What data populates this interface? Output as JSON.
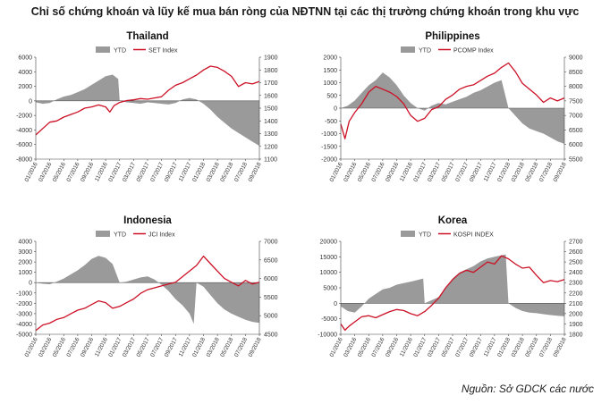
{
  "main_title": "Chỉ số chứng khoán và lũy kế mua bán ròng của NĐTNN tại các thị trường chứng khoán trong khu vực",
  "source": "Nguồn: Sở GDCK các nước",
  "colors": {
    "bar": "#9a9a9a",
    "line": "#cc1126"
  },
  "chart_data": [
    {
      "type": "area+line",
      "title": "Thailand",
      "legend": [
        "YTD",
        "SET Index"
      ],
      "left_ticks": [
        "6000",
        "4000",
        "2000",
        "0",
        "-2000",
        "-4000",
        "-6000",
        "-8000"
      ],
      "left_range": [
        -8000,
        6000
      ],
      "right_ticks": [
        "1900",
        "1800",
        "1700",
        "1600",
        "1500",
        "1400",
        "1300",
        "1200",
        "1100"
      ],
      "right_range": [
        1100,
        1900
      ],
      "x_labels": [
        "01/2016",
        "03/2016",
        "05/2016",
        "07/2016",
        "09/2016",
        "11/2016",
        "01/2017",
        "03/2017",
        "05/2017",
        "07/2017",
        "09/2017",
        "11/2017",
        "01/2018",
        "03/2018",
        "05/2018",
        "07/2018",
        "09/2018"
      ],
      "ytd_series": [
        [
          0,
          -200
        ],
        [
          0.5,
          -400
        ],
        [
          1,
          -300
        ],
        [
          1.5,
          200
        ],
        [
          2,
          600
        ],
        [
          2.5,
          800
        ],
        [
          3,
          1200
        ],
        [
          3.5,
          1600
        ],
        [
          4,
          2200
        ],
        [
          4.5,
          2800
        ],
        [
          5,
          3400
        ],
        [
          5.5,
          3600
        ],
        [
          5.9,
          3000
        ],
        [
          6,
          0
        ],
        [
          6.5,
          -200
        ],
        [
          7,
          -300
        ],
        [
          7.5,
          -400
        ],
        [
          8,
          -200
        ],
        [
          8.5,
          -300
        ],
        [
          9,
          -400
        ],
        [
          9.5,
          -500
        ],
        [
          10,
          -300
        ],
        [
          10.5,
          200
        ],
        [
          11,
          400
        ],
        [
          11.5,
          200
        ],
        [
          12,
          -400
        ],
        [
          12.5,
          -1200
        ],
        [
          13,
          -2200
        ],
        [
          13.5,
          -3000
        ],
        [
          14,
          -3800
        ],
        [
          14.5,
          -4400
        ],
        [
          15,
          -5000
        ],
        [
          15.5,
          -5600
        ],
        [
          16,
          -6200
        ]
      ],
      "index_series": [
        [
          0,
          1290
        ],
        [
          0.5,
          1340
        ],
        [
          1,
          1390
        ],
        [
          1.5,
          1400
        ],
        [
          2,
          1430
        ],
        [
          2.5,
          1450
        ],
        [
          3,
          1470
        ],
        [
          3.5,
          1500
        ],
        [
          4,
          1510
        ],
        [
          4.5,
          1525
        ],
        [
          5,
          1510
        ],
        [
          5.3,
          1470
        ],
        [
          5.6,
          1520
        ],
        [
          6,
          1545
        ],
        [
          6.5,
          1560
        ],
        [
          7,
          1565
        ],
        [
          7.5,
          1575
        ],
        [
          8,
          1570
        ],
        [
          8.5,
          1580
        ],
        [
          9,
          1590
        ],
        [
          9.5,
          1640
        ],
        [
          10,
          1680
        ],
        [
          10.5,
          1700
        ],
        [
          11,
          1730
        ],
        [
          11.5,
          1760
        ],
        [
          12,
          1800
        ],
        [
          12.5,
          1830
        ],
        [
          13,
          1820
        ],
        [
          13.5,
          1790
        ],
        [
          14,
          1750
        ],
        [
          14.5,
          1670
        ],
        [
          15,
          1700
        ],
        [
          15.5,
          1690
        ],
        [
          16,
          1710
        ]
      ]
    },
    {
      "type": "area+line",
      "title": "Philippines",
      "legend": [
        "YTD",
        "PCOMP Index"
      ],
      "left_ticks": [
        "2000",
        "1500",
        "1000",
        "500",
        "0",
        "-500",
        "-1000",
        "-1500",
        "-2000"
      ],
      "left_range": [
        -2000,
        2000
      ],
      "right_ticks": [
        "9000",
        "8500",
        "8000",
        "7500",
        "7000",
        "6500",
        "6000",
        "5500"
      ],
      "right_range": [
        5500,
        9000
      ],
      "x_labels": [
        "01/2016",
        "03/2016",
        "05/2016",
        "07/2016",
        "09/2016",
        "11/2016",
        "01/2017",
        "03/2017",
        "05/2017",
        "07/2017",
        "09/2017",
        "11/2017",
        "01/2018",
        "03/2018",
        "05/2018",
        "07/2018",
        "09/2018"
      ],
      "ytd_series": [
        [
          0,
          0
        ],
        [
          0.5,
          100
        ],
        [
          1,
          300
        ],
        [
          1.5,
          600
        ],
        [
          2,
          900
        ],
        [
          2.5,
          1100
        ],
        [
          3,
          1400
        ],
        [
          3.5,
          1200
        ],
        [
          4,
          900
        ],
        [
          4.5,
          500
        ],
        [
          5,
          200
        ],
        [
          5.5,
          0
        ],
        [
          6,
          -100
        ],
        [
          6.5,
          100
        ],
        [
          7,
          200
        ],
        [
          7.5,
          150
        ],
        [
          8,
          250
        ],
        [
          8.5,
          350
        ],
        [
          9,
          450
        ],
        [
          9.5,
          600
        ],
        [
          10,
          700
        ],
        [
          10.5,
          850
        ],
        [
          11,
          1000
        ],
        [
          11.5,
          1100
        ],
        [
          12,
          0
        ],
        [
          12.5,
          -300
        ],
        [
          13,
          -600
        ],
        [
          13.5,
          -800
        ],
        [
          14,
          -900
        ],
        [
          14.5,
          -1000
        ],
        [
          15,
          -1150
        ],
        [
          15.5,
          -1300
        ],
        [
          16,
          -1400
        ]
      ],
      "index_series": [
        [
          0,
          6700
        ],
        [
          0.3,
          6200
        ],
        [
          0.6,
          6800
        ],
        [
          1,
          7100
        ],
        [
          1.5,
          7400
        ],
        [
          2,
          7800
        ],
        [
          2.5,
          8000
        ],
        [
          3,
          7900
        ],
        [
          3.5,
          7800
        ],
        [
          4,
          7650
        ],
        [
          4.5,
          7400
        ],
        [
          5,
          7000
        ],
        [
          5.5,
          6800
        ],
        [
          6,
          6900
        ],
        [
          6.5,
          7200
        ],
        [
          7,
          7300
        ],
        [
          7.5,
          7550
        ],
        [
          8,
          7700
        ],
        [
          8.5,
          7900
        ],
        [
          9,
          8000
        ],
        [
          9.5,
          8050
        ],
        [
          10,
          8200
        ],
        [
          10.5,
          8350
        ],
        [
          11,
          8450
        ],
        [
          11.5,
          8650
        ],
        [
          12,
          8800
        ],
        [
          12.5,
          8500
        ],
        [
          13,
          8100
        ],
        [
          13.5,
          7900
        ],
        [
          14,
          7700
        ],
        [
          14.5,
          7450
        ],
        [
          15,
          7600
        ],
        [
          15.5,
          7500
        ],
        [
          16,
          7600
        ]
      ]
    },
    {
      "type": "area+line",
      "title": "Indonesia",
      "legend": [
        "YTD",
        "JCI Index"
      ],
      "left_ticks": [
        "4000",
        "3000",
        "2000",
        "1000",
        "0",
        "-1000",
        "-2000",
        "-3000",
        "-4000",
        "-5000"
      ],
      "left_range": [
        -5000,
        4000
      ],
      "right_ticks": [
        "7000",
        "6500",
        "6000",
        "5500",
        "5000",
        "4500"
      ],
      "right_range": [
        4500,
        7000
      ],
      "x_labels": [
        "01/2016",
        "03/2016",
        "05/2016",
        "07/2016",
        "09/2016",
        "11/2016",
        "01/2017",
        "03/2017",
        "05/2017",
        "07/2017",
        "09/2017",
        "11/2017",
        "01/2018",
        "03/2018",
        "05/2018",
        "07/2018",
        "09/2018"
      ],
      "ytd_series": [
        [
          0,
          0
        ],
        [
          0.5,
          -100
        ],
        [
          1,
          -150
        ],
        [
          1.5,
          100
        ],
        [
          2,
          400
        ],
        [
          2.5,
          800
        ],
        [
          3,
          1200
        ],
        [
          3.5,
          1700
        ],
        [
          4,
          2300
        ],
        [
          4.5,
          2600
        ],
        [
          5,
          2400
        ],
        [
          5.5,
          1800
        ],
        [
          6,
          0
        ],
        [
          6.5,
          100
        ],
        [
          7,
          300
        ],
        [
          7.5,
          500
        ],
        [
          8,
          600
        ],
        [
          8.5,
          300
        ],
        [
          9,
          -200
        ],
        [
          9.5,
          -800
        ],
        [
          10,
          -1600
        ],
        [
          10.5,
          -2200
        ],
        [
          11,
          -3000
        ],
        [
          11.3,
          -4000
        ],
        [
          11.5,
          0
        ],
        [
          12,
          -400
        ],
        [
          12.5,
          -1200
        ],
        [
          13,
          -2000
        ],
        [
          13.5,
          -2600
        ],
        [
          14,
          -3000
        ],
        [
          14.5,
          -3300
        ],
        [
          15,
          -3600
        ],
        [
          15.5,
          -3800
        ],
        [
          16,
          -3900
        ]
      ],
      "index_series": [
        [
          0,
          4600
        ],
        [
          0.5,
          4750
        ],
        [
          1,
          4800
        ],
        [
          1.5,
          4900
        ],
        [
          2,
          4950
        ],
        [
          2.5,
          5050
        ],
        [
          3,
          5150
        ],
        [
          3.5,
          5200
        ],
        [
          4,
          5300
        ],
        [
          4.5,
          5400
        ],
        [
          5,
          5350
        ],
        [
          5.5,
          5200
        ],
        [
          6,
          5250
        ],
        [
          6.5,
          5350
        ],
        [
          7,
          5450
        ],
        [
          7.5,
          5600
        ],
        [
          8,
          5700
        ],
        [
          8.5,
          5750
        ],
        [
          9,
          5800
        ],
        [
          9.5,
          5850
        ],
        [
          10,
          5900
        ],
        [
          10.5,
          6050
        ],
        [
          11,
          6200
        ],
        [
          11.5,
          6350
        ],
        [
          12,
          6600
        ],
        [
          12.5,
          6400
        ],
        [
          13,
          6200
        ],
        [
          13.5,
          6000
        ],
        [
          14,
          5900
        ],
        [
          14.5,
          5800
        ],
        [
          15,
          5950
        ],
        [
          15.5,
          5850
        ],
        [
          16,
          5900
        ]
      ]
    },
    {
      "type": "area+line",
      "title": "Korea",
      "legend": [
        "YTD",
        "KOSPI INDEX"
      ],
      "left_ticks": [
        "20000",
        "15000",
        "10000",
        "5000",
        "0",
        "-5000",
        "-10000"
      ],
      "left_range": [
        -10000,
        20000
      ],
      "right_ticks": [
        "2700",
        "2600",
        "2500",
        "2400",
        "2300",
        "2200",
        "2100",
        "2000",
        "1900",
        "1800"
      ],
      "right_range": [
        1800,
        2700
      ],
      "x_labels": [
        "01/2016",
        "03/2016",
        "05/2016",
        "07/2016",
        "09/2016",
        "11/2016",
        "01/2017",
        "03/2017",
        "05/2017",
        "07/2017",
        "09/2017",
        "11/2017",
        "01/2018",
        "03/2018",
        "05/2018",
        "07/2018",
        "09/2018"
      ],
      "ytd_series": [
        [
          0,
          -1000
        ],
        [
          0.5,
          -2500
        ],
        [
          1,
          -3000
        ],
        [
          1.5,
          -1000
        ],
        [
          2,
          1500
        ],
        [
          2.5,
          3000
        ],
        [
          3,
          4500
        ],
        [
          3.5,
          5000
        ],
        [
          4,
          6000
        ],
        [
          4.5,
          6500
        ],
        [
          5,
          7000
        ],
        [
          5.5,
          7500
        ],
        [
          5.9,
          8000
        ],
        [
          6,
          0
        ],
        [
          6.5,
          1000
        ],
        [
          7,
          2000
        ],
        [
          7.5,
          5000
        ],
        [
          8,
          8000
        ],
        [
          8.5,
          10000
        ],
        [
          9,
          11000
        ],
        [
          9.5,
          12000
        ],
        [
          10,
          13500
        ],
        [
          10.5,
          14500
        ],
        [
          11,
          15000
        ],
        [
          11.5,
          15500
        ],
        [
          11.8,
          15800
        ],
        [
          12,
          0
        ],
        [
          12.5,
          -1500
        ],
        [
          13,
          -2500
        ],
        [
          13.5,
          -3000
        ],
        [
          14,
          -3200
        ],
        [
          14.5,
          -3500
        ],
        [
          15,
          -3800
        ],
        [
          15.5,
          -4000
        ],
        [
          16,
          -4200
        ]
      ],
      "index_series": [
        [
          0,
          1900
        ],
        [
          0.3,
          1840
        ],
        [
          0.6,
          1880
        ],
        [
          1,
          1920
        ],
        [
          1.5,
          1970
        ],
        [
          2,
          1980
        ],
        [
          2.5,
          1960
        ],
        [
          3,
          1990
        ],
        [
          3.5,
          2020
        ],
        [
          4,
          2040
        ],
        [
          4.5,
          2030
        ],
        [
          5,
          2000
        ],
        [
          5.5,
          1980
        ],
        [
          6,
          2020
        ],
        [
          6.5,
          2080
        ],
        [
          7,
          2150
        ],
        [
          7.5,
          2250
        ],
        [
          8,
          2330
        ],
        [
          8.5,
          2390
        ],
        [
          9,
          2420
        ],
        [
          9.5,
          2400
        ],
        [
          10,
          2450
        ],
        [
          10.5,
          2500
        ],
        [
          11,
          2480
        ],
        [
          11.5,
          2560
        ],
        [
          12,
          2530
        ],
        [
          12.5,
          2480
        ],
        [
          13,
          2440
        ],
        [
          13.5,
          2450
        ],
        [
          14,
          2370
        ],
        [
          14.5,
          2300
        ],
        [
          15,
          2320
        ],
        [
          15.5,
          2310
        ],
        [
          16,
          2330
        ]
      ]
    }
  ]
}
